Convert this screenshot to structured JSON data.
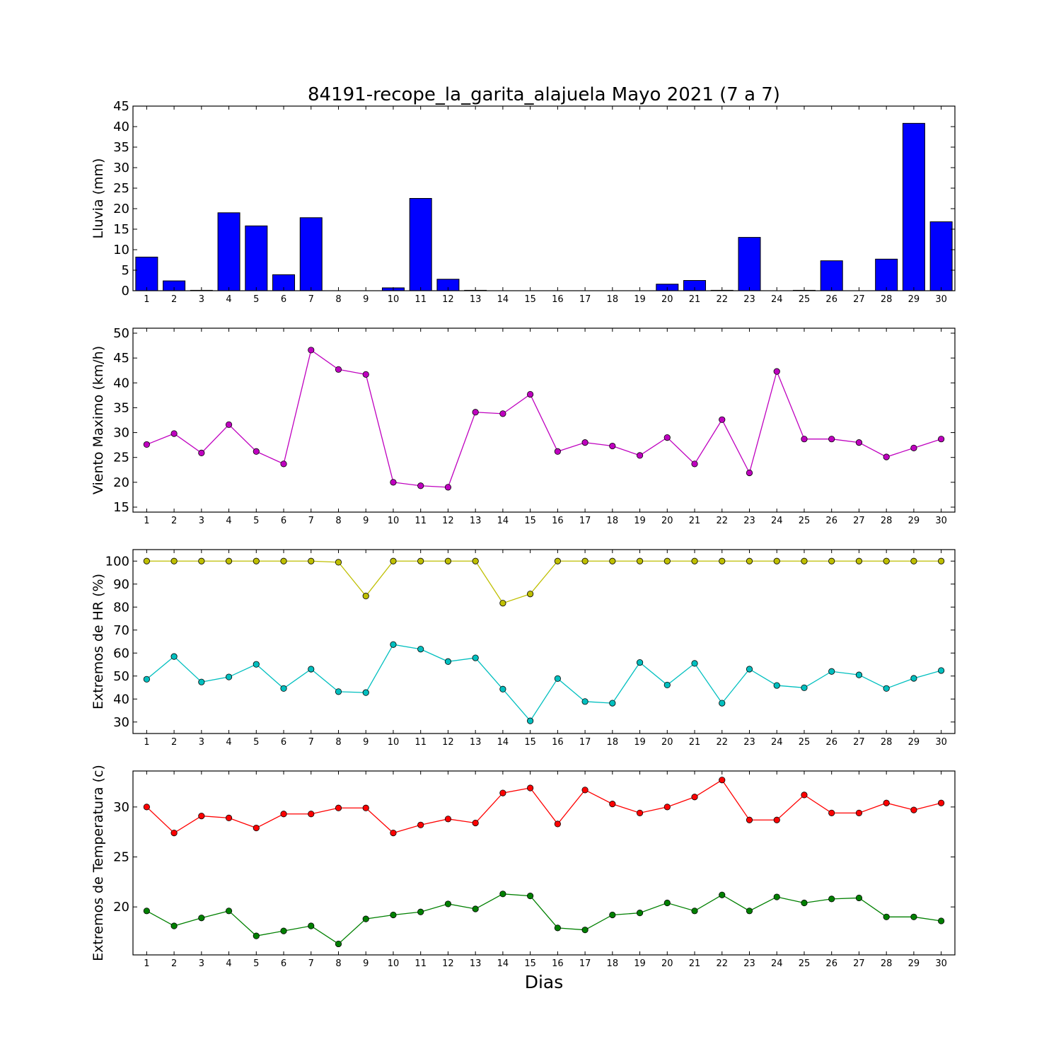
{
  "chart_data": [
    {
      "type": "bar",
      "title": "84191-recope_la_garita_alajuela Mayo 2021  (7 a 7)",
      "ylabel": "Lluvia (mm)",
      "xlabel": "",
      "categories": [
        1,
        2,
        3,
        4,
        5,
        6,
        7,
        8,
        9,
        10,
        11,
        12,
        13,
        14,
        15,
        16,
        17,
        18,
        19,
        20,
        21,
        22,
        23,
        24,
        25,
        26,
        27,
        28,
        29,
        30
      ],
      "values": [
        8.2,
        2.4,
        0.1,
        19.0,
        15.8,
        3.9,
        17.8,
        0,
        0,
        0.7,
        22.5,
        2.8,
        0.1,
        0,
        0,
        0,
        0,
        0,
        0,
        1.6,
        2.5,
        0.1,
        13.0,
        0,
        0.1,
        7.3,
        0,
        7.7,
        40.8,
        16.8
      ],
      "ylim": [
        0,
        45
      ],
      "yticks": [
        0,
        5,
        10,
        15,
        20,
        25,
        30,
        35,
        40,
        45
      ],
      "color": "#0000ff",
      "grid": false
    },
    {
      "type": "line",
      "ylabel": "Viento Maximo (km/h)",
      "xlabel": "",
      "x": [
        1,
        2,
        3,
        4,
        5,
        6,
        7,
        8,
        9,
        10,
        11,
        12,
        13,
        14,
        15,
        16,
        17,
        18,
        19,
        20,
        21,
        22,
        23,
        24,
        25,
        26,
        27,
        28,
        29,
        30
      ],
      "series": [
        {
          "values": [
            27.6,
            29.8,
            25.9,
            31.6,
            26.2,
            23.7,
            46.6,
            42.7,
            41.7,
            20.0,
            19.3,
            19.0,
            34.1,
            33.8,
            37.7,
            26.2,
            28.0,
            27.3,
            25.4,
            29.0,
            23.7,
            32.6,
            21.9,
            42.3,
            28.7,
            28.7,
            28.0,
            25.1,
            26.9,
            28.7
          ],
          "color": "#bf00bf"
        }
      ],
      "ylim": [
        14,
        51
      ],
      "yticks": [
        15,
        20,
        25,
        30,
        35,
        40,
        45,
        50
      ],
      "grid": false
    },
    {
      "type": "line",
      "ylabel": "Extremos de HR (%)",
      "xlabel": "",
      "x": [
        1,
        2,
        3,
        4,
        5,
        6,
        7,
        8,
        9,
        10,
        11,
        12,
        13,
        14,
        15,
        16,
        17,
        18,
        19,
        20,
        21,
        22,
        23,
        24,
        25,
        26,
        27,
        28,
        29,
        30
      ],
      "series": [
        {
          "values": [
            100,
            100,
            100,
            100,
            100,
            100,
            100,
            99.5,
            84.8,
            100,
            100,
            100,
            100,
            81.7,
            85.7,
            100,
            100,
            100,
            100,
            100,
            100,
            100,
            100,
            100,
            100,
            100,
            100,
            100,
            100,
            100
          ],
          "color": "#bfbf00"
        },
        {
          "values": [
            48.6,
            58.5,
            47.4,
            49.6,
            55.1,
            44.6,
            53.0,
            43.2,
            42.8,
            63.7,
            61.7,
            56.3,
            57.9,
            44.3,
            30.5,
            48.9,
            38.9,
            38.2,
            55.9,
            46.1,
            55.5,
            38.2,
            53.0,
            45.9,
            44.9,
            52.0,
            50.5,
            44.6,
            49.0,
            52.4
          ],
          "color": "#00bfbf"
        }
      ],
      "ylim": [
        25,
        105
      ],
      "yticks": [
        30,
        40,
        50,
        60,
        70,
        80,
        90,
        100
      ],
      "grid": false
    },
    {
      "type": "line",
      "ylabel": "Extremos de Temperatura (c)",
      "xlabel": "Dias",
      "x": [
        1,
        2,
        3,
        4,
        5,
        6,
        7,
        8,
        9,
        10,
        11,
        12,
        13,
        14,
        15,
        16,
        17,
        18,
        19,
        20,
        21,
        22,
        23,
        24,
        25,
        26,
        27,
        28,
        29,
        30
      ],
      "series": [
        {
          "values": [
            30.0,
            27.4,
            29.1,
            28.9,
            27.9,
            29.3,
            29.3,
            29.9,
            29.9,
            27.4,
            28.2,
            28.8,
            28.4,
            31.4,
            31.9,
            28.3,
            31.7,
            30.3,
            29.4,
            30.0,
            31.0,
            32.7,
            28.7,
            28.7,
            31.2,
            29.4,
            29.4,
            30.4,
            29.7,
            30.4
          ],
          "color": "#ff0000"
        },
        {
          "values": [
            19.6,
            18.1,
            18.9,
            19.6,
            17.1,
            17.6,
            18.1,
            16.3,
            18.8,
            19.2,
            19.5,
            20.3,
            19.8,
            21.3,
            21.1,
            17.9,
            17.7,
            19.2,
            19.4,
            20.4,
            19.6,
            21.2,
            19.6,
            21.0,
            20.4,
            20.8,
            20.9,
            19.0,
            19.0,
            18.6
          ],
          "color": "#008000"
        }
      ],
      "ylim": [
        15.2,
        33.6
      ],
      "yticks": [
        20,
        25,
        30
      ],
      "grid": false
    }
  ]
}
